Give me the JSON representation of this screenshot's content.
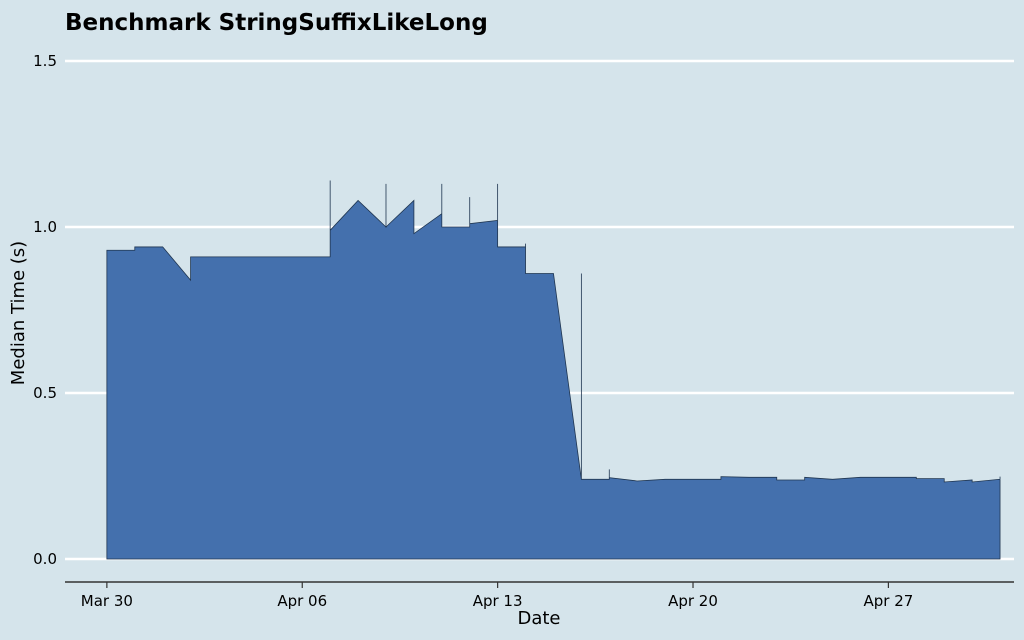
{
  "chart_data": {
    "type": "area",
    "title": "Benchmark StringSuffixLikeLong",
    "xlabel": "Date",
    "ylabel": "Median Time (s)",
    "ylim": [
      0,
      1.5
    ],
    "yticks": [
      "0.0",
      "0.5",
      "1.0",
      "1.5"
    ],
    "xticks": [
      "Mar 30",
      "Apr 06",
      "Apr 13",
      "Apr 20",
      "Apr 27"
    ],
    "xlim": [
      "2024-03-28 12:00",
      "2024-05-01 12:00"
    ],
    "grid": true,
    "fill_color": "#4470ad",
    "line_color": "#1f3550",
    "points": [
      [
        "2024-03-30 00:00",
        0.93
      ],
      [
        "2024-03-31 00:00",
        0.93
      ],
      [
        "2024-03-31 00:00",
        0.94
      ],
      [
        "2024-04-01 00:00",
        0.94
      ],
      [
        "2024-04-02 00:00",
        0.84
      ],
      [
        "2024-04-02 00:00",
        0.91
      ],
      [
        "2024-04-03 00:00",
        0.91
      ],
      [
        "2024-04-04 00:00",
        0.91
      ],
      [
        "2024-04-05 00:00",
        0.91
      ],
      [
        "2024-04-06 00:00",
        0.91
      ],
      [
        "2024-04-07 00:00",
        0.91
      ],
      [
        "2024-04-07 00:00",
        1.14
      ],
      [
        "2024-04-07 00:00",
        0.99
      ],
      [
        "2024-04-08 00:00",
        1.08
      ],
      [
        "2024-04-09 00:00",
        1.0
      ],
      [
        "2024-04-09 00:00",
        1.13
      ],
      [
        "2024-04-09 00:00",
        1.0
      ],
      [
        "2024-04-10 00:00",
        1.08
      ],
      [
        "2024-04-10 00:00",
        0.98
      ],
      [
        "2024-04-11 00:00",
        1.04
      ],
      [
        "2024-04-11 00:00",
        1.13
      ],
      [
        "2024-04-11 00:00",
        1.0
      ],
      [
        "2024-04-12 00:00",
        1.0
      ],
      [
        "2024-04-12 00:00",
        1.09
      ],
      [
        "2024-04-12 00:00",
        1.01
      ],
      [
        "2024-04-13 00:00",
        1.02
      ],
      [
        "2024-04-13 00:00",
        1.13
      ],
      [
        "2024-04-13 00:00",
        0.94
      ],
      [
        "2024-04-14 00:00",
        0.94
      ],
      [
        "2024-04-14 00:00",
        0.95
      ],
      [
        "2024-04-14 00:00",
        0.86
      ],
      [
        "2024-04-15 00:00",
        0.86
      ],
      [
        "2024-04-16 00:00",
        0.24
      ],
      [
        "2024-04-16 00:00",
        0.86
      ],
      [
        "2024-04-16 00:00",
        0.24
      ],
      [
        "2024-04-17 00:00",
        0.24
      ],
      [
        "2024-04-17 00:00",
        0.27
      ],
      [
        "2024-04-17 00:00",
        0.245
      ],
      [
        "2024-04-18 00:00",
        0.235
      ],
      [
        "2024-04-19 00:00",
        0.24
      ],
      [
        "2024-04-20 00:00",
        0.24
      ],
      [
        "2024-04-21 00:00",
        0.24
      ],
      [
        "2024-04-21 00:00",
        0.248
      ],
      [
        "2024-04-22 00:00",
        0.246
      ],
      [
        "2024-04-23 00:00",
        0.246
      ],
      [
        "2024-04-23 00:00",
        0.238
      ],
      [
        "2024-04-24 00:00",
        0.238
      ],
      [
        "2024-04-24 00:00",
        0.246
      ],
      [
        "2024-04-25 00:00",
        0.24
      ],
      [
        "2024-04-26 00:00",
        0.246
      ],
      [
        "2024-04-27 00:00",
        0.246
      ],
      [
        "2024-04-28 00:00",
        0.246
      ],
      [
        "2024-04-28 00:00",
        0.242
      ],
      [
        "2024-04-29 00:00",
        0.242
      ],
      [
        "2024-04-29 00:00",
        0.232
      ],
      [
        "2024-04-30 00:00",
        0.238
      ],
      [
        "2024-04-30 00:00",
        0.232
      ],
      [
        "2024-05-01 00:00",
        0.24
      ],
      [
        "2024-05-01 00:00",
        0.248
      ]
    ]
  }
}
